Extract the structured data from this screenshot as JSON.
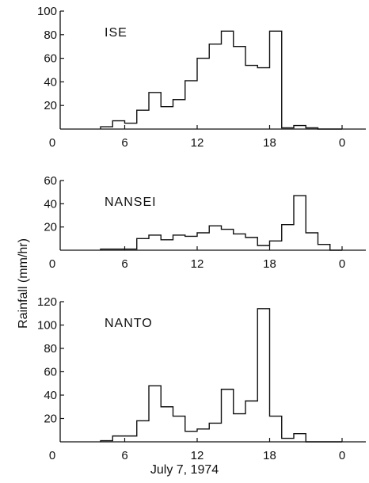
{
  "chart_data": [
    {
      "type": "step",
      "title": "ISE",
      "x_ticks": [
        "0",
        "6",
        "12",
        "18",
        "0"
      ],
      "y_ticks": [
        "20",
        "40",
        "60",
        "80",
        "100"
      ],
      "ylim": [
        0,
        100
      ],
      "xlim_hours": [
        0,
        24
      ],
      "series": [
        {
          "x_start_hour": [
            4,
            5,
            6,
            7,
            8,
            9,
            10,
            11,
            12,
            13,
            14,
            15,
            16,
            17,
            18,
            19,
            20,
            21,
            22,
            23
          ],
          "values": [
            2,
            7,
            5,
            16,
            31,
            19,
            25,
            41,
            60,
            72,
            83,
            70,
            54,
            52,
            83,
            1,
            3,
            1,
            0,
            0
          ]
        }
      ]
    },
    {
      "type": "step",
      "title": "NANSEI",
      "x_ticks": [
        "0",
        "6",
        "12",
        "18",
        "0"
      ],
      "y_ticks": [
        "20",
        "40",
        "60"
      ],
      "ylim": [
        0,
        60
      ],
      "xlim_hours": [
        0,
        24
      ],
      "series": [
        {
          "x_start_hour": [
            4,
            5,
            6,
            7,
            8,
            9,
            10,
            11,
            12,
            13,
            14,
            15,
            16,
            17,
            18,
            19,
            20,
            21,
            22,
            23
          ],
          "values": [
            1,
            1,
            1,
            10,
            13,
            9,
            13,
            12,
            15,
            21,
            18,
            14,
            11,
            4,
            8,
            22,
            47,
            15,
            5,
            0
          ]
        }
      ]
    },
    {
      "type": "step",
      "title": "NANTO",
      "x_ticks": [
        "0",
        "6",
        "12",
        "18",
        "0"
      ],
      "y_ticks": [
        "20",
        "40",
        "60",
        "80",
        "100",
        "120"
      ],
      "ylim": [
        0,
        120
      ],
      "xlim_hours": [
        0,
        24
      ],
      "series": [
        {
          "x_start_hour": [
            4,
            5,
            6,
            7,
            8,
            9,
            10,
            11,
            12,
            13,
            14,
            15,
            16,
            17,
            18,
            19,
            20,
            21,
            22,
            23
          ],
          "values": [
            1,
            5,
            5,
            18,
            48,
            30,
            22,
            9,
            11,
            16,
            45,
            24,
            35,
            114,
            22,
            3,
            7,
            0,
            0,
            0
          ]
        }
      ]
    }
  ],
  "ylabel": "Rainfall  (mm/hr)",
  "xlabel": "July 7, 1974"
}
